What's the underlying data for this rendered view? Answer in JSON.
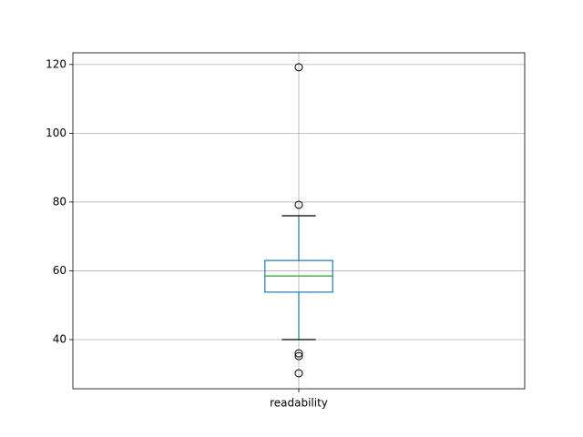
{
  "chart_data": {
    "type": "box",
    "categories": [
      "readability"
    ],
    "boxes": [
      {
        "whislo": 40,
        "q1": 53.8,
        "med": 58.5,
        "q3": 63,
        "whishi": 76,
        "fliers": [
          119.2,
          79.2,
          36,
          35.2,
          30.2
        ]
      }
    ],
    "box_color": "#1f77b4",
    "median_color": "#2ca02c",
    "ylim": [
      25.7,
      123.4
    ],
    "yticks": [
      40,
      60,
      80,
      100,
      120
    ],
    "grid": true
  }
}
